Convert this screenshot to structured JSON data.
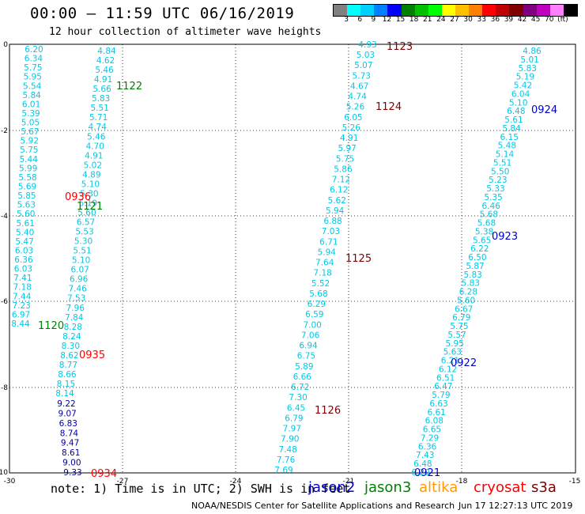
{
  "title": "00:00 – 11:59 UTC 06/16/2019",
  "subtitle": "12 hour collection of altimeter wave heights",
  "legend": {
    "colors": [
      "#808080",
      "#00ffff",
      "#00d0ff",
      "#0080ff",
      "#0000ff",
      "#008000",
      "#00c000",
      "#00ff00",
      "#ffff00",
      "#ffc000",
      "#ff8000",
      "#ff0000",
      "#c00000",
      "#800000",
      "#800080",
      "#c000c0",
      "#ff80ff",
      "#000000"
    ],
    "labels": [
      "3",
      "6",
      "9",
      "12",
      "15",
      "18",
      "21",
      "24",
      "27",
      "30",
      "33",
      "36",
      "39",
      "42",
      "45",
      "70",
      "(ft)"
    ]
  },
  "axes": {
    "x_ticks": [
      "-30",
      "-27",
      "-24",
      "-21",
      "-18",
      "-15"
    ],
    "y_ticks": [
      "0",
      "-2",
      "-4",
      "-6",
      "-8",
      "-10"
    ]
  },
  "tracks": [
    {
      "color": "#00c8e6",
      "values": [
        "6.20",
        "6.34",
        "5.75",
        "5.95",
        "5.54",
        "5.84",
        "6.01",
        "5.39",
        "5.05",
        "5.67",
        "5.92",
        "5.75",
        "5.44",
        "5.99",
        "5.58",
        "5.69",
        "5.85",
        "5.63",
        "5.60",
        "5.61",
        "5.40",
        "5.47",
        "6.03",
        "6.36",
        "6.03",
        "7.41",
        "7.18",
        "7.44",
        "7.23",
        "6.97",
        "8.44"
      ]
    },
    {
      "color": "#00c8e6",
      "values": [
        "4.84",
        "4.62",
        "5.46",
        "4.91",
        "5.66",
        "5.83",
        "5.51",
        "5.71",
        "4.74",
        "5.46",
        "4.70",
        "4.91",
        "5.02",
        "4.89",
        "5.10",
        "5.30",
        "5.19",
        "5.60",
        "6.57",
        "5.53",
        "5.30",
        "5.51",
        "5.10",
        "6.07",
        "6.96",
        "7.46",
        "7.53",
        "7.96",
        "7.84",
        "8.28",
        "8.24",
        "8.30",
        "8.62",
        "8.77",
        "8.66",
        "8.15",
        "8.14"
      ]
    },
    {
      "color": "#00009c",
      "values": [
        "9.22",
        "9.07",
        "6.83",
        "8.74",
        "9.47",
        "8.61",
        "9.00",
        "9.33"
      ]
    },
    {
      "color": "#00c8e6",
      "values": [
        "4.93",
        "5.03",
        "5.07",
        "5.73",
        "4.67",
        "4.74",
        "5.26",
        "6.05",
        "5.26",
        "4.91",
        "5.97",
        "5.75",
        "5.86",
        "7.12",
        "6.12",
        "5.62",
        "5.94",
        "6.88",
        "7.03",
        "6.71",
        "5.94",
        "7.64",
        "7.18",
        "5.52",
        "5.68",
        "6.29",
        "6.59",
        "7.00",
        "7.06",
        "6.94",
        "6.75",
        "5.89",
        "6.66",
        "6.72",
        "7.30",
        "6.45",
        "6.79",
        "7.97",
        "7.90",
        "7.48",
        "7.76",
        "7.69"
      ]
    },
    {
      "color": "#00c8e6",
      "values": [
        "4.86",
        "5.01",
        "5.83",
        "5.19",
        "5.42",
        "6.04",
        "5.10",
        "6.48",
        "5.61",
        "5.84",
        "6.15",
        "5.48",
        "5.14",
        "5.51",
        "5.50",
        "5.23",
        "5.33",
        "5.35",
        "6.46",
        "5.68",
        "5.68",
        "5.38",
        "5.65",
        "6.22",
        "6.50",
        "5.87",
        "5.83",
        "5.83",
        "6.28",
        "5.60",
        "6.67",
        "6.79",
        "5.75",
        "5.57",
        "5.95",
        "5.63",
        "6.21",
        "6.12",
        "6.51",
        "6.47",
        "5.79",
        "6.63",
        "6.61",
        "6.08",
        "6.65",
        "7.29",
        "6.36",
        "7.43",
        "6.48",
        "6.20"
      ]
    }
  ],
  "time_labels": [
    {
      "text": "1122",
      "color": "#008000"
    },
    {
      "text": "0936",
      "color": "#ff0000"
    },
    {
      "text": "1121",
      "color": "#008000"
    },
    {
      "text": "1120",
      "color": "#008000"
    },
    {
      "text": "0935",
      "color": "#ff0000"
    },
    {
      "text": "0934",
      "color": "#ff0000"
    },
    {
      "text": "1123",
      "color": "#800000"
    },
    {
      "text": "1124",
      "color": "#800000"
    },
    {
      "text": "1125",
      "color": "#800000"
    },
    {
      "text": "1126",
      "color": "#800000"
    },
    {
      "text": "0924",
      "color": "#0000c8"
    },
    {
      "text": "0923",
      "color": "#0000c8"
    },
    {
      "text": "0922",
      "color": "#0000c8"
    },
    {
      "text": "0921",
      "color": "#0000c8"
    }
  ],
  "note": "note: 1) Time is in UTC; 2) SWH is in feet",
  "satellites": [
    {
      "name": "jason2",
      "color": "#0000c8"
    },
    {
      "name": "jason3",
      "color": "#008000"
    },
    {
      "name": "altika",
      "color": "#ff9900"
    },
    {
      "name": "cryosat",
      "color": "#ff0000"
    },
    {
      "name": "s3a",
      "color": "#800000"
    }
  ],
  "footer": {
    "left": "NOAA/NESDIS Center for Satellite Applications and Research",
    "right": "Jun 17 12:27:13 UTC 2019"
  }
}
